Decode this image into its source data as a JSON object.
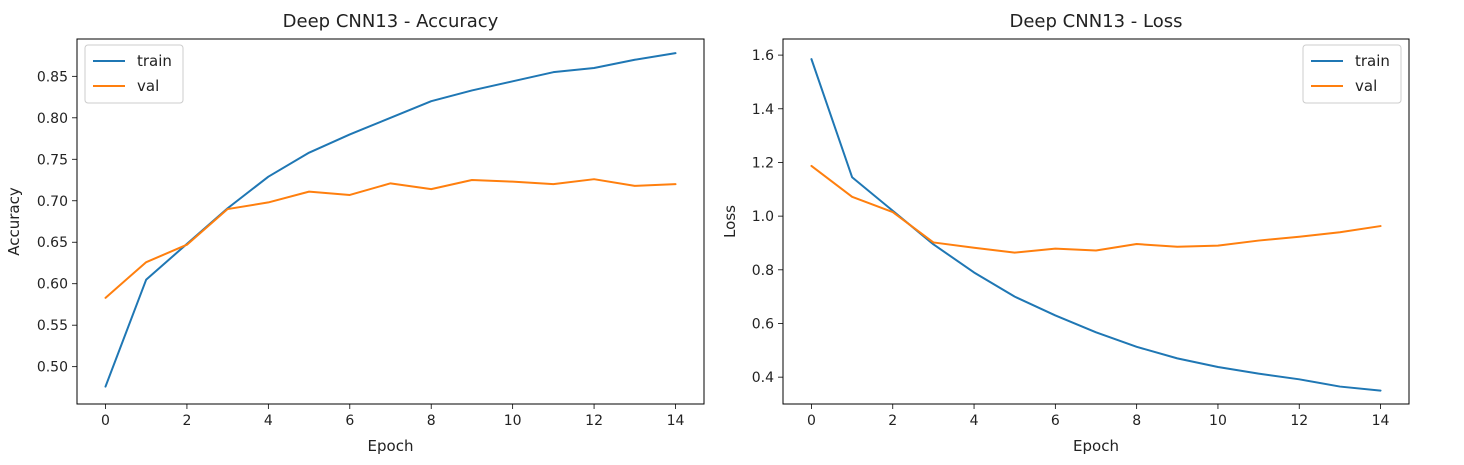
{
  "chart_data": [
    {
      "type": "line",
      "title": "Deep CNN13 - Accuracy",
      "xlabel": "Epoch",
      "ylabel": "Accuracy",
      "xlim": [
        -0.7,
        14.7
      ],
      "ylim": [
        0.455,
        0.895
      ],
      "xticks": [
        0,
        2,
        4,
        6,
        8,
        10,
        12,
        14
      ],
      "yticks": [
        0.5,
        0.55,
        0.6,
        0.65,
        0.7,
        0.75,
        0.8,
        0.85
      ],
      "ytick_labels": [
        "0.50",
        "0.55",
        "0.60",
        "0.65",
        "0.70",
        "0.75",
        "0.80",
        "0.85"
      ],
      "legend_position": "top-left",
      "x": [
        0,
        1,
        2,
        3,
        4,
        5,
        6,
        7,
        8,
        9,
        10,
        11,
        12,
        13,
        14
      ],
      "series": [
        {
          "name": "train",
          "color": "#1f77b4",
          "values": [
            0.476,
            0.605,
            0.648,
            0.691,
            0.729,
            0.758,
            0.78,
            0.8,
            0.82,
            0.833,
            0.844,
            0.855,
            0.86,
            0.87,
            0.878
          ]
        },
        {
          "name": "val",
          "color": "#ff7f0e",
          "values": [
            0.583,
            0.626,
            0.647,
            0.69,
            0.698,
            0.711,
            0.707,
            0.721,
            0.714,
            0.725,
            0.723,
            0.72,
            0.726,
            0.718,
            0.72
          ]
        }
      ]
    },
    {
      "type": "line",
      "title": "Deep CNN13 - Loss",
      "xlabel": "Epoch",
      "ylabel": "Loss",
      "xlim": [
        -0.7,
        14.7
      ],
      "ylim": [
        0.3,
        1.66
      ],
      "xticks": [
        0,
        2,
        4,
        6,
        8,
        10,
        12,
        14
      ],
      "yticks": [
        0.4,
        0.6,
        0.8,
        1.0,
        1.2,
        1.4,
        1.6
      ],
      "ytick_labels": [
        "0.4",
        "0.6",
        "0.8",
        "1.0",
        "1.2",
        "1.4",
        "1.6"
      ],
      "legend_position": "top-right",
      "x": [
        0,
        1,
        2,
        3,
        4,
        5,
        6,
        7,
        8,
        9,
        10,
        11,
        12,
        13,
        14
      ],
      "series": [
        {
          "name": "train",
          "color": "#1f77b4",
          "values": [
            1.585,
            1.145,
            1.02,
            0.895,
            0.79,
            0.7,
            0.63,
            0.567,
            0.513,
            0.47,
            0.438,
            0.413,
            0.392,
            0.365,
            0.35
          ]
        },
        {
          "name": "val",
          "color": "#ff7f0e",
          "values": [
            1.187,
            1.072,
            1.015,
            0.902,
            0.882,
            0.864,
            0.879,
            0.872,
            0.896,
            0.886,
            0.89,
            0.909,
            0.923,
            0.94,
            0.963
          ]
        }
      ]
    }
  ]
}
